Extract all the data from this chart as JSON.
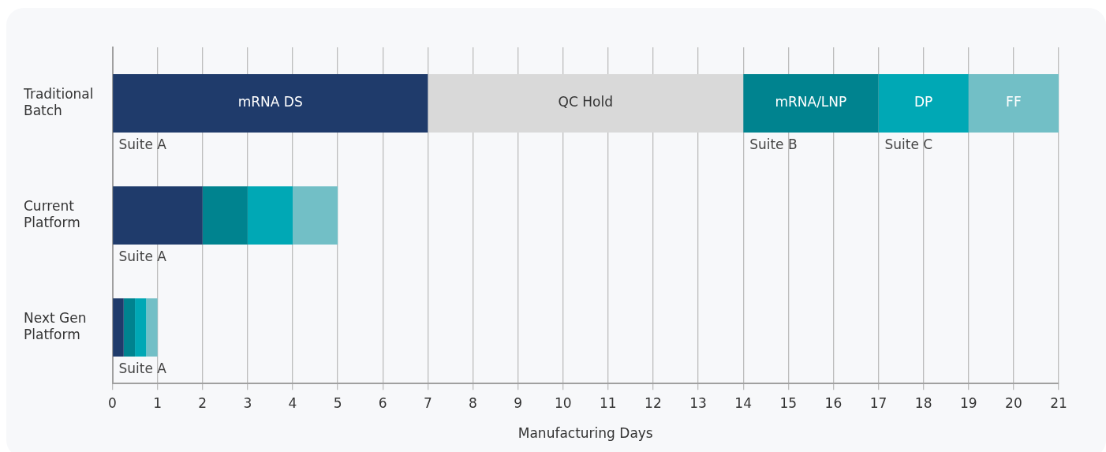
{
  "chart_data": {
    "type": "bar",
    "orientation": "horizontal",
    "stacked": true,
    "xlabel": "Manufacturing Days",
    "categories": [
      "Traditional Batch",
      "Current Platform",
      "Next Gen Platform"
    ],
    "series": [
      {
        "name": "mRNA DS",
        "color": "#1f3b6b",
        "values": [
          7,
          2,
          0.25
        ]
      },
      {
        "name": "QC Hold",
        "color": "#d9d9d9",
        "values": [
          7,
          0,
          0
        ]
      },
      {
        "name": "mRNA/LNP",
        "color": "#00838f",
        "values": [
          3,
          1,
          0.25
        ]
      },
      {
        "name": "DP",
        "color": "#00a8b5",
        "values": [
          2,
          1,
          0.25
        ]
      },
      {
        "name": "FF",
        "color": "#72bfc6",
        "values": [
          2,
          1,
          0.25
        ]
      }
    ],
    "xlim": [
      0,
      21
    ],
    "xticks": [
      0,
      1,
      2,
      3,
      4,
      5,
      6,
      7,
      8,
      9,
      10,
      11,
      12,
      13,
      14,
      15,
      16,
      17,
      18,
      19,
      20,
      21
    ],
    "grid": "x",
    "legend": false,
    "annotations": [
      {
        "text": "Suite A",
        "x": 0,
        "y": "Traditional Batch"
      },
      {
        "text": "Suite B",
        "x": 14,
        "y": "Traditional Batch"
      },
      {
        "text": "Suite C",
        "x": 17,
        "y": "Traditional Batch"
      },
      {
        "text": "Suite A",
        "x": 0,
        "y": "Current Platform"
      },
      {
        "text": "Suite A",
        "x": 0,
        "y": "Next Gen Platform"
      }
    ]
  }
}
